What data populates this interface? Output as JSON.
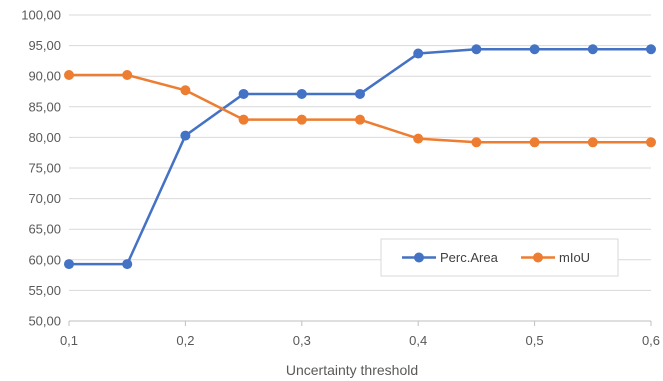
{
  "chart_data": {
    "type": "line",
    "xlabel": "Uncertainty threshold",
    "ylabel": "",
    "x": [
      0.1,
      0.15,
      0.2,
      0.25,
      0.3,
      0.35,
      0.4,
      0.45,
      0.5,
      0.55,
      0.6
    ],
    "xticks": [
      "0,1",
      "0,2",
      "0,3",
      "0,4",
      "0,5",
      "0,6"
    ],
    "xtick_values": [
      0.1,
      0.2,
      0.3,
      0.4,
      0.5,
      0.6
    ],
    "xlim": [
      0.1,
      0.6
    ],
    "ylim": [
      50,
      100
    ],
    "yticks": [
      "50,00",
      "55,00",
      "60,00",
      "65,00",
      "70,00",
      "75,00",
      "80,00",
      "85,00",
      "90,00",
      "95,00",
      "100,00"
    ],
    "ytick_values": [
      50,
      55,
      60,
      65,
      70,
      75,
      80,
      85,
      90,
      95,
      100
    ],
    "grid": true,
    "legend": "inside-bottom-right",
    "series": [
      {
        "name": "Perc.Area",
        "color": "#4472C4",
        "values": [
          59.3,
          59.3,
          80.3,
          87.1,
          87.1,
          87.1,
          93.7,
          94.4,
          94.4,
          94.4,
          94.4
        ]
      },
      {
        "name": "mIoU",
        "color": "#ED7D31",
        "values": [
          90.2,
          90.2,
          87.7,
          82.9,
          82.9,
          82.9,
          79.8,
          79.2,
          79.2,
          79.2,
          79.2
        ]
      }
    ]
  }
}
